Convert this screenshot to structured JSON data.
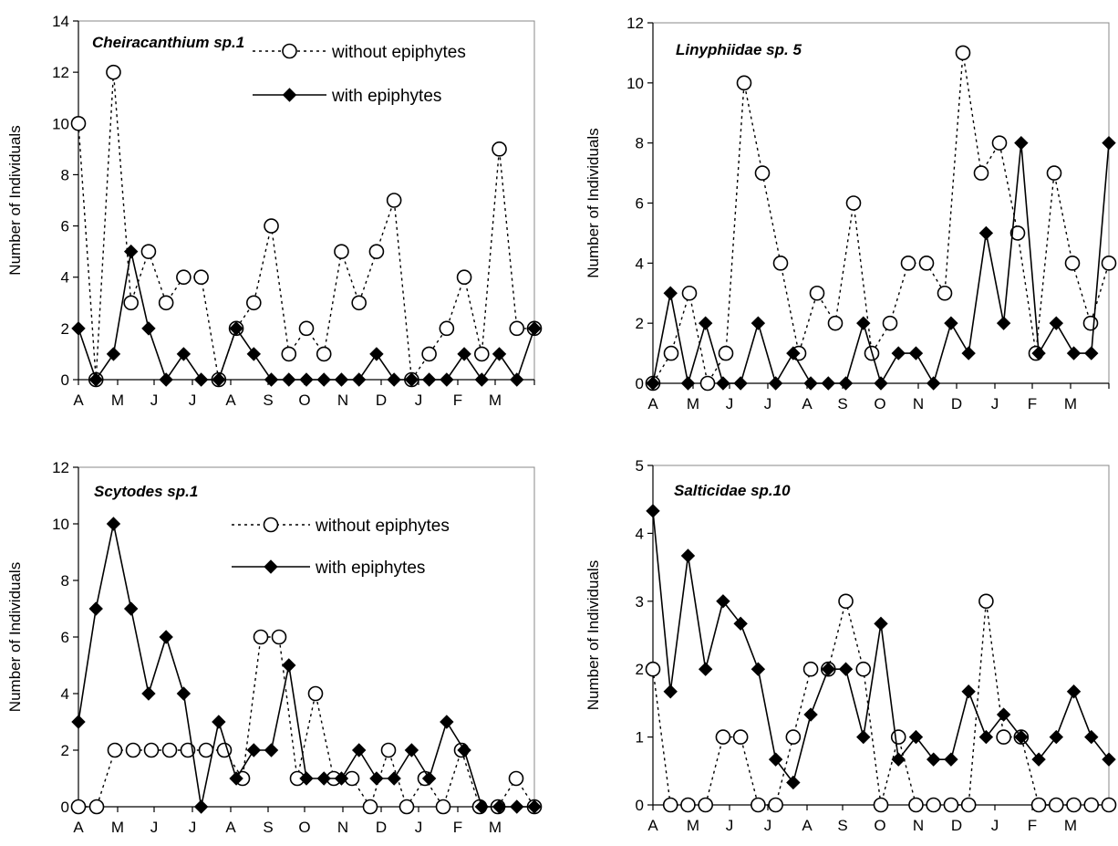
{
  "chart_data": [
    {
      "type": "line",
      "title": "Cheiracanthium sp.1",
      "xlabel": "",
      "ylabel": "Number of Individuals",
      "ylim": [
        0,
        14
      ],
      "yticks": [
        0,
        2,
        4,
        6,
        8,
        10,
        12,
        14
      ],
      "x_tick_labels": [
        "A",
        "M",
        "J",
        "J",
        "A",
        "S",
        "O",
        "N",
        "D",
        "J",
        "F",
        "M"
      ],
      "legend": true,
      "legend_placement": "top-right",
      "series": [
        {
          "name": "without epiphytes",
          "style": "dotted-open-circle",
          "values": [
            10,
            0,
            12,
            3,
            5,
            3,
            4,
            4,
            0,
            2,
            3,
            6,
            1,
            2,
            1,
            5,
            3,
            5,
            7,
            0,
            1,
            2,
            4,
            1,
            9,
            2,
            2
          ]
        },
        {
          "name": "with epiphytes",
          "style": "solid-filled-diamond",
          "values": [
            2,
            0,
            1,
            5,
            2,
            0,
            1,
            0,
            0,
            2,
            1,
            0,
            0,
            0,
            0,
            0,
            0,
            1,
            0,
            0,
            0,
            0,
            1,
            0,
            1,
            0,
            2
          ]
        }
      ]
    },
    {
      "type": "line",
      "title": "Linyphiidae sp. 5",
      "xlabel": "",
      "ylabel": "Number of Individuals",
      "ylim": [
        0,
        12
      ],
      "yticks": [
        0,
        2,
        4,
        6,
        8,
        10,
        12
      ],
      "x_tick_labels": [
        "A",
        "M",
        "J",
        "J",
        "A",
        "S",
        "O",
        "N",
        "D",
        "J",
        "F",
        "M"
      ],
      "legend": false,
      "series": [
        {
          "name": "without epiphytes",
          "style": "dotted-open-circle",
          "values": [
            0,
            1,
            3,
            0,
            1,
            10,
            7,
            4,
            1,
            3,
            2,
            6,
            1,
            2,
            4,
            4,
            3,
            11,
            7,
            8,
            5,
            1,
            7,
            4,
            2,
            4
          ]
        },
        {
          "name": "with epiphytes",
          "style": "solid-filled-diamond",
          "values": [
            0,
            3,
            0,
            2,
            0,
            0,
            2,
            0,
            1,
            0,
            0,
            0,
            2,
            0,
            1,
            1,
            0,
            2,
            1,
            5,
            2,
            8,
            1,
            2,
            1,
            1,
            8
          ]
        }
      ]
    },
    {
      "type": "line",
      "title": "Scytodes sp.1",
      "xlabel": "",
      "ylabel": "Number of Individuals",
      "ylim": [
        0,
        12
      ],
      "yticks": [
        0,
        2,
        4,
        6,
        8,
        10,
        12
      ],
      "x_tick_labels": [
        "A",
        "M",
        "J",
        "J",
        "A",
        "S",
        "O",
        "N",
        "D",
        "J",
        "F",
        "M"
      ],
      "legend": true,
      "legend_placement": "top-right",
      "series": [
        {
          "name": "without epiphytes",
          "style": "dotted-open-circle",
          "values": [
            0,
            0,
            2,
            2,
            2,
            2,
            2,
            2,
            2,
            1,
            6,
            6,
            1,
            4,
            1,
            1,
            0,
            2,
            0,
            1,
            0,
            2,
            0,
            0,
            1,
            0
          ]
        },
        {
          "name": "with epiphytes",
          "style": "solid-filled-diamond",
          "values": [
            3,
            7,
            10,
            7,
            4,
            6,
            4,
            0,
            3,
            1,
            2,
            2,
            5,
            1,
            1,
            1,
            2,
            1,
            1,
            2,
            1,
            3,
            2,
            0,
            0,
            0,
            0
          ]
        }
      ]
    },
    {
      "type": "line",
      "title": "Salticidae sp.10",
      "xlabel": "",
      "ylabel": "Number of Individuals",
      "ylim": [
        0,
        5
      ],
      "yticks": [
        0,
        1,
        2,
        3,
        4,
        5
      ],
      "x_tick_labels": [
        "A",
        "M",
        "J",
        "J",
        "A",
        "S",
        "O",
        "N",
        "D",
        "J",
        "F",
        "M"
      ],
      "legend": false,
      "series": [
        {
          "name": "without epiphytes",
          "style": "dotted-open-circle",
          "values": [
            2,
            0,
            0,
            0,
            1,
            1,
            0,
            0,
            1,
            2,
            2,
            3,
            2,
            0,
            1,
            0,
            0,
            0,
            0,
            3,
            1,
            1,
            0,
            0,
            0,
            0,
            0
          ]
        },
        {
          "name": "with epiphytes",
          "style": "solid-filled-diamond",
          "values": [
            4.33,
            1.67,
            3.67,
            2,
            3,
            2.67,
            2,
            0.67,
            0.33,
            1.33,
            2,
            2,
            1,
            2.67,
            0.67,
            1,
            0.67,
            0.67,
            1.67,
            1,
            1.33,
            1,
            0.67,
            1,
            1.67,
            1,
            0.67
          ]
        }
      ]
    }
  ]
}
